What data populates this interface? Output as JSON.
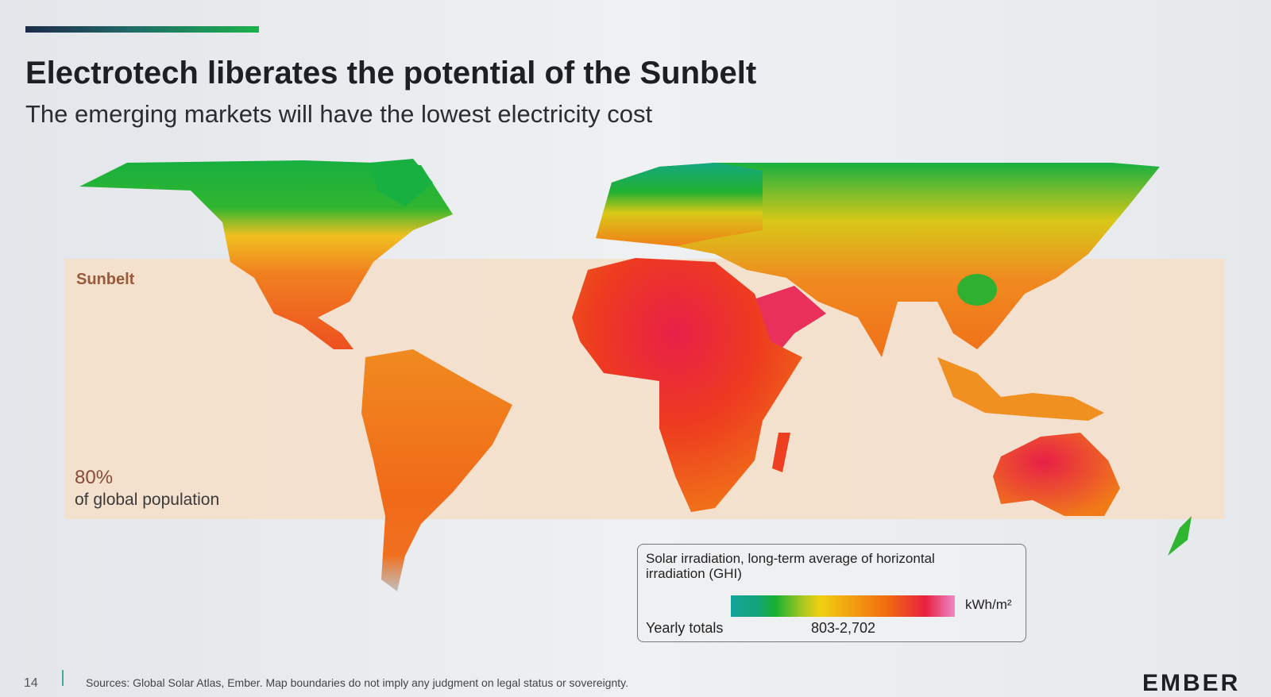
{
  "slide": {
    "title": "Electrotech liberates the potential of the Sunbelt",
    "subtitle": "The emerging markets will have the lowest electricity cost",
    "page_number": "14",
    "sources": "Sources: Global Solar Atlas, Ember. Map boundaries do not imply any judgment on legal status or sovereignty.",
    "logo": "EMBER"
  },
  "map": {
    "band_label": "Sunbelt",
    "population_pct": "80%",
    "population_caption": "of global population",
    "band_color": "#f3dfcb"
  },
  "legend": {
    "title": "Solar irradiation, long-term average of horizontal irradiation (GHI)",
    "unit": "kWh/m²",
    "row_label": "Yearly totals",
    "range": "803-2,702",
    "colors": [
      "#15a39a",
      "#18b030",
      "#f0d010",
      "#f06a10",
      "#e82040",
      "#ec8ac8"
    ]
  }
}
